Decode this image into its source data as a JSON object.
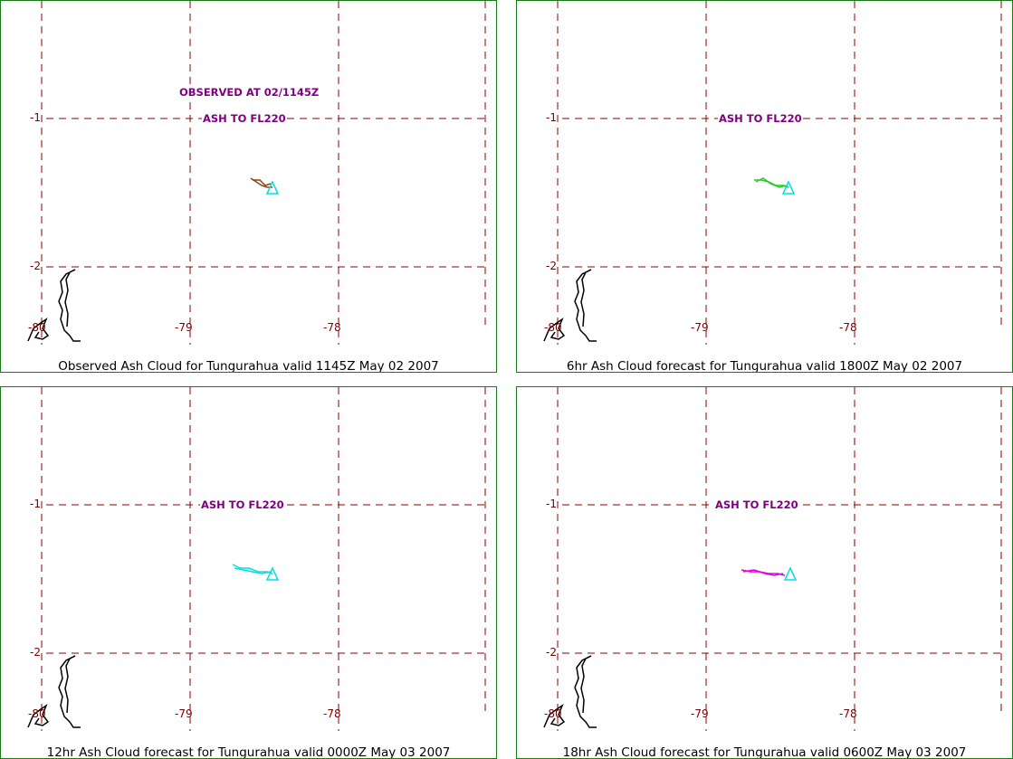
{
  "panels": [
    {
      "caption": "Observed Ash Cloud for Tungurahua valid 1145Z May 02 2007",
      "annotations": [
        "OBSERVED AT 02/1145Z",
        "ASH TO FL220"
      ],
      "cloud_color": "#8b4513"
    },
    {
      "caption": "6hr Ash Cloud forecast for Tungurahua valid 1800Z May 02 2007",
      "annotations": [
        "ASH TO FL220"
      ],
      "cloud_color": "#22cc22"
    },
    {
      "caption": "12hr Ash Cloud forecast for Tungurahua valid 0000Z May 03 2007",
      "annotations": [
        "ASH TO FL220"
      ],
      "cloud_color": "#00e0e0"
    },
    {
      "caption": "18hr Ash Cloud forecast for Tungurahua valid 0600Z May 03 2007",
      "annotations": [
        "ASH TO FL220"
      ],
      "cloud_color": "#e000e0"
    }
  ],
  "grid_labels": {
    "lat_1": "-1",
    "lat_2": "-2",
    "lon_80": "-80",
    "lon_79": "-79",
    "lon_78": "-78"
  },
  "colors": {
    "border": "#1a7a1a",
    "grid": "#8b0000",
    "annotation": "#800080",
    "volcano_marker": "#00e0e0",
    "coastline": "#000000"
  }
}
